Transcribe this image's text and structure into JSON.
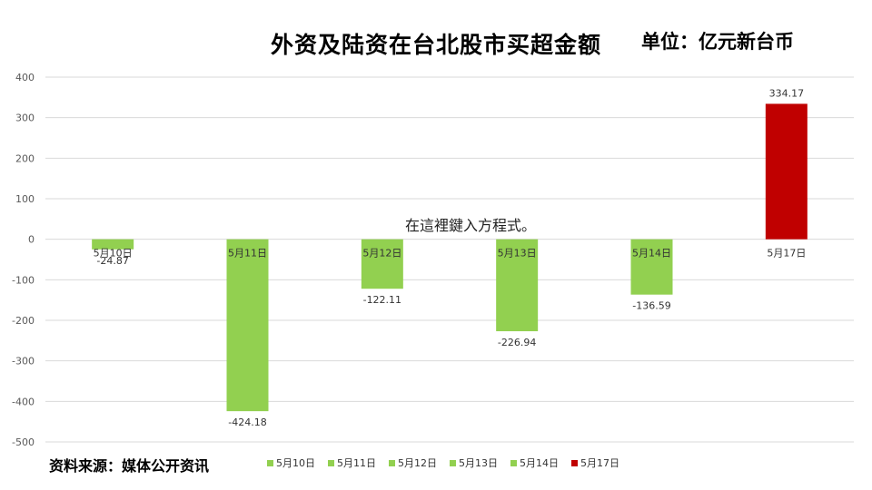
{
  "header": {
    "title": "外资及陆资在台北股市买超金额",
    "unit": "单位：亿元新台币"
  },
  "placeholder_text": "在這裡鍵入方程式。",
  "footer": {
    "source": "资料来源：媒体公开资讯"
  },
  "colors": {
    "positive": "#c00000",
    "negative": "#92d050",
    "grid": "#d9d9d9"
  },
  "chart_data": {
    "type": "bar",
    "categories": [
      "5月10日",
      "5月11日",
      "5月12日",
      "5月13日",
      "5月14日",
      "5月17日"
    ],
    "values": [
      -24.87,
      -424.18,
      -122.11,
      -226.94,
      -136.59,
      334.17
    ],
    "value_labels": [
      "-24.87",
      "-424.18",
      "-122.11",
      "-226.94",
      "-136.59",
      "334.17"
    ],
    "yticks": [
      400,
      300,
      200,
      100,
      0,
      -100,
      -200,
      -300,
      -400,
      -500
    ],
    "ylim": [
      -500,
      400
    ],
    "grid": true,
    "legend": [
      "5月10日",
      "5月11日",
      "5月12日",
      "5月13日",
      "5月14日",
      "5月17日"
    ],
    "legend_position": "bottom"
  }
}
